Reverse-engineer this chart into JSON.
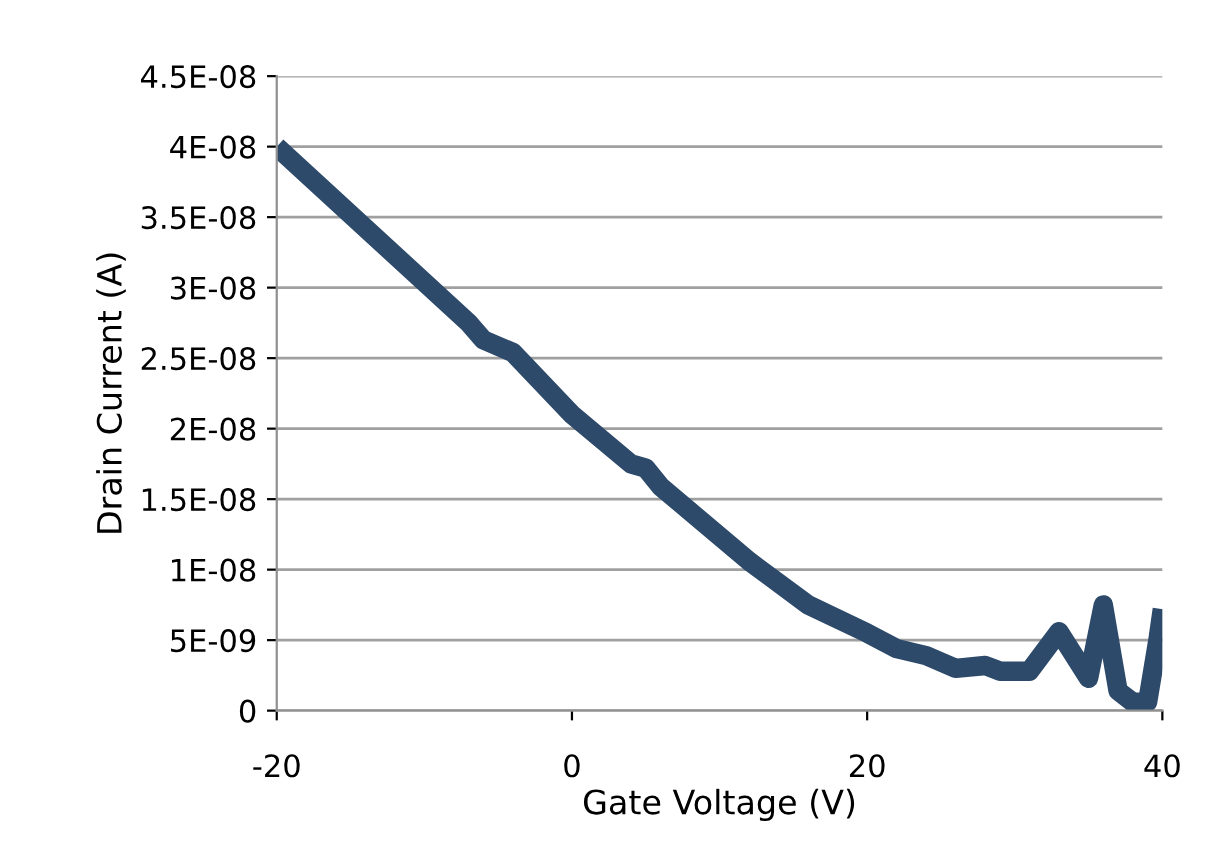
{
  "chart_data": {
    "type": "line",
    "xlabel": "Gate Voltage (V)",
    "ylabel": "Drain Current (A)",
    "x": [
      -20,
      -7,
      -6,
      -4,
      0,
      4,
      5,
      6,
      12,
      16,
      20,
      22,
      24,
      26,
      28,
      29,
      31,
      33,
      35,
      36,
      37,
      38,
      39,
      39.7,
      40
    ],
    "series": [
      {
        "color": "#2e4a6b",
        "values": [
          4e-08,
          2.75e-08,
          2.63e-08,
          2.54e-08,
          2.1e-08,
          1.75e-08,
          1.72e-08,
          1.59e-08,
          1.06e-08,
          7.5e-09,
          5.5e-09,
          4.4e-09,
          3.9e-09,
          3e-09,
          3.2e-09,
          2.8e-09,
          2.8e-09,
          5.6e-09,
          2.3e-09,
          7.5e-09,
          1.4e-09,
          6e-10,
          6e-10,
          5e-09,
          7.2e-09
        ]
      }
    ],
    "xlim": [
      -20,
      40
    ],
    "xticks": [
      -20,
      0,
      20,
      40
    ],
    "ylim": [
      0,
      4.5e-08
    ],
    "yticks": [
      {
        "value": 0,
        "label": "0"
      },
      {
        "value": 5e-09,
        "label": "5E-09"
      },
      {
        "value": 1e-08,
        "label": "1E-08"
      },
      {
        "value": 1.5e-08,
        "label": "1.5E-08"
      },
      {
        "value": 2e-08,
        "label": "2E-08"
      },
      {
        "value": 2.5e-08,
        "label": "2.5E-08"
      },
      {
        "value": 3e-08,
        "label": "3E-08"
      },
      {
        "value": 3.5e-08,
        "label": "3.5E-08"
      },
      {
        "value": 4e-08,
        "label": "4E-08"
      },
      {
        "value": 4.5e-08,
        "label": "4.5E-08"
      }
    ],
    "grid": "y",
    "line_style": "solid",
    "marker": "none"
  }
}
